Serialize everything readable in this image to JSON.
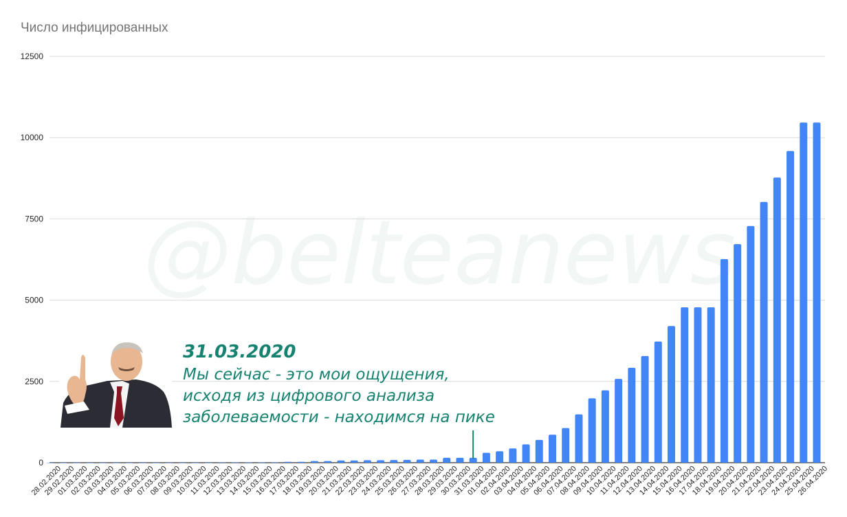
{
  "title": "Число инфицированных",
  "watermark": "@belteanews",
  "callout": {
    "date": "31.03.2020",
    "lines": [
      "Мы сейчас - это мои ощущения,",
      "исходя из цифрового анализа",
      "заболеваемости - находимся на пике"
    ],
    "marker_category": "31.03.2020"
  },
  "colors": {
    "bar": "#4285f4",
    "grid": "#d9d9d9",
    "callout": "#17826f"
  },
  "chart_data": {
    "type": "bar",
    "title": "Число инфицированных",
    "xlabel": "",
    "ylabel": "",
    "ylim": [
      0,
      12500
    ],
    "yticks": [
      0,
      2500,
      5000,
      7500,
      10000,
      12500
    ],
    "grid": true,
    "categories": [
      "28.02.2020",
      "29.02.2020",
      "01.03.2020",
      "02.03.2020",
      "03.03.2020",
      "04.03.2020",
      "05.03.2020",
      "06.03.2020",
      "07.03.2020",
      "08.03.2020",
      "09.03.2020",
      "10.03.2020",
      "11.03.2020",
      "12.03.2020",
      "13.03.2020",
      "14.03.2020",
      "15.03.2020",
      "16.03.2020",
      "17.03.2020",
      "18.03.2020",
      "19.03.2020",
      "20.03.2020",
      "21.03.2020",
      "22.03.2020",
      "23.03.2020",
      "24.03.2020",
      "25.03.2020",
      "26.03.2020",
      "27.03.2020",
      "28.03.2020",
      "29.03.2020",
      "30.03.2020",
      "31.03.2020",
      "01.04.2020",
      "02.04.2020",
      "03.04.2020",
      "04.04.2020",
      "05.04.2020",
      "06.04.2020",
      "07.04.2020",
      "08.04.2020",
      "09.04.2020",
      "10.04.2020",
      "11.04.2020",
      "12.04.2020",
      "13.04.2020",
      "14.04.2020",
      "15.04.2020",
      "16.04.2020",
      "17.04.2020",
      "18.04.2020",
      "19.04.2020",
      "20.04.2020",
      "21.04.2020",
      "22.04.2020",
      "23.04.2020",
      "24.04.2020",
      "25.04.2020",
      "26.04.2020"
    ],
    "values": [
      1,
      1,
      1,
      1,
      1,
      1,
      1,
      1,
      1,
      1,
      1,
      1,
      1,
      9,
      9,
      9,
      9,
      9,
      27,
      27,
      51,
      51,
      69,
      69,
      76,
      76,
      81,
      86,
      94,
      94,
      152,
      152,
      152,
      304,
      351,
      440,
      562,
      700,
      861,
      1066,
      1486,
      1981,
      2226,
      2578,
      2919,
      3281,
      3728,
      4204,
      4779,
      4779,
      4779,
      6264,
      6723,
      7281,
      8022,
      8773,
      9590,
      10463,
      10463
    ]
  }
}
